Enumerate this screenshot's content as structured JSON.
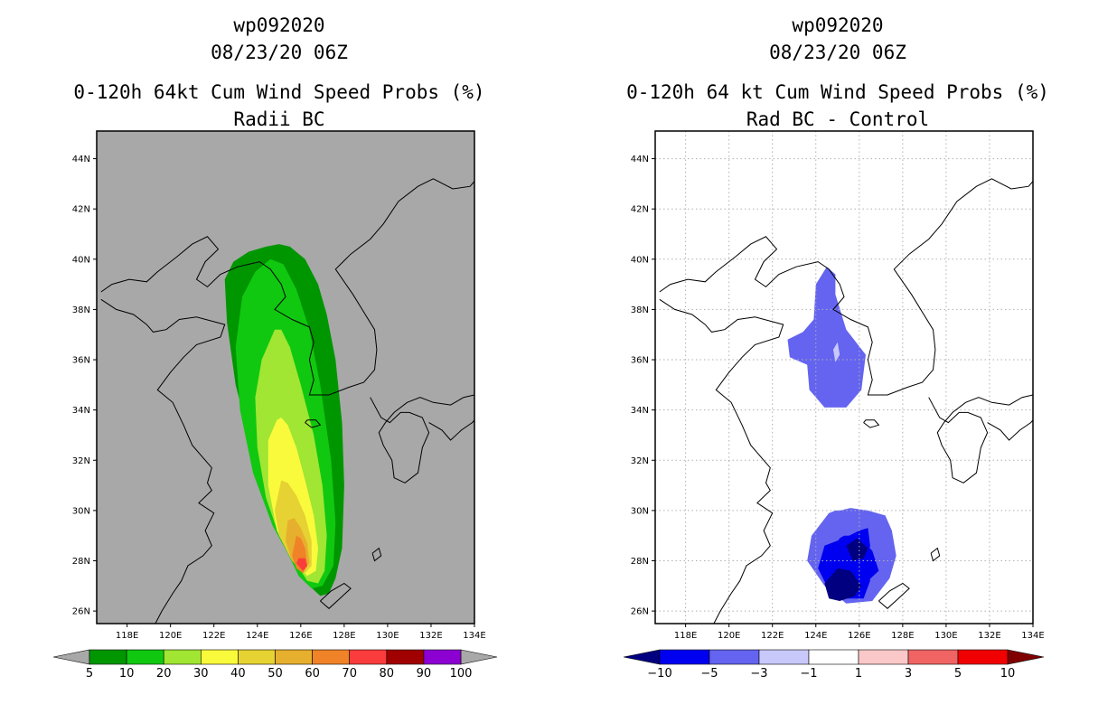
{
  "chart_data": [
    {
      "type": "heatmap",
      "title_lines": [
        "wp092020",
        "08/23/20 06Z",
        "0-120h 64kt Cum Wind Speed Probs (%)",
        "Radii BC"
      ],
      "x_ticks": [
        "118E",
        "120E",
        "122E",
        "124E",
        "126E",
        "128E",
        "130E",
        "132E",
        "134E"
      ],
      "y_ticks": [
        "26N",
        "28N",
        "30N",
        "32N",
        "34N",
        "36N",
        "38N",
        "40N",
        "42N",
        "44N"
      ],
      "xlim": [
        116.6,
        134
      ],
      "ylim": [
        25.5,
        45.1
      ],
      "grid": false,
      "background_color": "#a8a8a8",
      "colorbar": {
        "labels": [
          "5",
          "10",
          "20",
          "30",
          "40",
          "50",
          "60",
          "70",
          "80",
          "90",
          "100"
        ],
        "colors": [
          "#009600",
          "#10c810",
          "#a0e632",
          "#fafa3c",
          "#e6d232",
          "#e6af2d",
          "#f08228",
          "#fa3c3c",
          "#a00000",
          "#8c00d2"
        ],
        "under_color": "#a8a8a8",
        "over_color": "#a8a8a8"
      },
      "contours": [
        {
          "level": 5,
          "lon": [
            125.0,
            124.4,
            123.6,
            122.9,
            122.5,
            122.6,
            123.0,
            123.9,
            124.9,
            125.7,
            126.4,
            126.9,
            127.3,
            127.6,
            127.9,
            128.0,
            127.9,
            127.6,
            127.2,
            126.8,
            126.2,
            125.5
          ],
          "lat": [
            40.6,
            40.5,
            40.3,
            39.9,
            39.2,
            37.5,
            35.0,
            32.0,
            29.5,
            28.0,
            27.0,
            26.6,
            26.7,
            27.3,
            28.5,
            31.0,
            33.5,
            36.0,
            37.8,
            39.0,
            40.0,
            40.5
          ]
        },
        {
          "level": 10,
          "lon": [
            124.6,
            123.9,
            123.3,
            123.0,
            123.2,
            123.8,
            124.7,
            125.4,
            125.9,
            126.5,
            127.0,
            127.5,
            127.6,
            127.4,
            126.9,
            126.4,
            125.8,
            125.2
          ],
          "lat": [
            40.0,
            39.5,
            38.5,
            36.5,
            34.0,
            31.5,
            29.4,
            28.3,
            27.4,
            26.9,
            27.0,
            27.8,
            29.5,
            32.0,
            35.0,
            37.2,
            38.8,
            39.8
          ]
        },
        {
          "level": 20,
          "lon": [
            124.8,
            124.2,
            123.9,
            124.0,
            124.4,
            125.0,
            125.7,
            126.3,
            126.8,
            127.1,
            127.2,
            127.0,
            126.6,
            126.0,
            125.5,
            125.1
          ],
          "lat": [
            37.2,
            36.0,
            34.5,
            32.5,
            30.5,
            29.0,
            28.0,
            27.2,
            27.1,
            27.6,
            29.0,
            31.0,
            33.0,
            35.0,
            36.5,
            37.2
          ]
        },
        {
          "level": 30,
          "lon": [
            124.9,
            124.5,
            124.5,
            124.9,
            125.6,
            126.3,
            126.7,
            126.8,
            126.6,
            126.2,
            125.8,
            125.4,
            125.1
          ],
          "lat": [
            33.6,
            32.8,
            31.0,
            29.2,
            28.0,
            27.4,
            27.6,
            28.5,
            29.8,
            31.2,
            32.5,
            33.4,
            33.7
          ]
        },
        {
          "level": 40,
          "lon": [
            125.1,
            124.8,
            125.0,
            125.6,
            126.2,
            126.5,
            126.5,
            126.2,
            125.8,
            125.4
          ],
          "lat": [
            31.2,
            30.0,
            29.0,
            28.0,
            27.5,
            27.8,
            28.8,
            29.8,
            30.6,
            31.1
          ]
        },
        {
          "level": 50,
          "lon": [
            125.4,
            125.3,
            125.6,
            126.1,
            126.4,
            126.3,
            126.0,
            125.7
          ],
          "lat": [
            29.6,
            28.8,
            28.0,
            27.6,
            27.9,
            28.7,
            29.3,
            29.7
          ]
        },
        {
          "level": 60,
          "lon": [
            125.8,
            125.6,
            125.8,
            126.1,
            126.3,
            126.2,
            126.0
          ],
          "lat": [
            29.0,
            28.2,
            27.7,
            27.5,
            27.8,
            28.5,
            28.9
          ]
        },
        {
          "level": 70,
          "lon": [
            125.8,
            126.1,
            126.3,
            126.2,
            125.9
          ],
          "lat": [
            27.9,
            27.6,
            27.8,
            28.1,
            28.1
          ]
        }
      ]
    },
    {
      "type": "heatmap",
      "title_lines": [
        "wp092020",
        "08/23/20 06Z",
        "0-120h 64 kt Cum Wind Speed Probs (%)",
        "Rad BC - Control"
      ],
      "x_ticks": [
        "118E",
        "120E",
        "122E",
        "124E",
        "126E",
        "128E",
        "130E",
        "132E",
        "134E"
      ],
      "y_ticks": [
        "26N",
        "28N",
        "30N",
        "32N",
        "34N",
        "36N",
        "38N",
        "40N",
        "42N",
        "44N"
      ],
      "xlim": [
        116.6,
        134
      ],
      "ylim": [
        25.5,
        45.1
      ],
      "grid": true,
      "background_color": "#ffffff",
      "colorbar": {
        "labels": [
          "-10",
          "-5",
          "-3",
          "-1",
          "1",
          "3",
          "5",
          "10"
        ],
        "colors": [
          "#0000f0",
          "#6464f0",
          "#c8c8fa",
          "#ffffff",
          "#fac8c8",
          "#f06464",
          "#f00000"
        ],
        "under_color": "#000080",
        "over_color": "#800000"
      },
      "contours": [
        {
          "level": -3,
          "lon": [
            124.5,
            124.0,
            123.9,
            123.4,
            122.7,
            122.8,
            123.6,
            123.7,
            124.4,
            125.4,
            126.1,
            126.3,
            125.4,
            124.9,
            124.9
          ],
          "lat": [
            39.7,
            39.0,
            37.6,
            37.1,
            36.8,
            36.1,
            35.8,
            34.8,
            34.1,
            34.1,
            34.8,
            36.2,
            37.2,
            38.6,
            39.4
          ]
        },
        {
          "level": -3,
          "lon": [
            124.6,
            123.8,
            123.6,
            124.4,
            125.4,
            126.6,
            127.4,
            127.7,
            127.5,
            127.2,
            126.4,
            125.6,
            125.1,
            124.9
          ],
          "lat": [
            29.9,
            29.0,
            28.0,
            27.0,
            26.3,
            26.4,
            27.3,
            28.2,
            29.2,
            29.8,
            30.0,
            30.1,
            30.0,
            30.0
          ]
        },
        {
          "level": -5,
          "lon": [
            124.4,
            124.1,
            124.5,
            125.4,
            126.2,
            126.5,
            126.4,
            126.5,
            126.4,
            126.0,
            125.3
          ],
          "lat": [
            28.6,
            27.7,
            27.0,
            26.5,
            26.5,
            27.2,
            28.0,
            28.6,
            29.3,
            29.2,
            28.9
          ]
        },
        {
          "level": -5,
          "lon": [
            125.1,
            124.6,
            125.6,
            126.4,
            126.9,
            126.6,
            125.9,
            125.3
          ],
          "lat": [
            28.9,
            28.2,
            27.4,
            27.2,
            27.6,
            28.4,
            29.0,
            29.0
          ]
        },
        {
          "level": -10,
          "lon": [
            124.4,
            125.0,
            125.6,
            126.1,
            125.8,
            125.1,
            124.6
          ],
          "lat": [
            27.1,
            27.7,
            27.6,
            27.0,
            26.6,
            26.4,
            26.5
          ]
        },
        {
          "level": -10,
          "lon": [
            125.4,
            125.9,
            126.4,
            126.2,
            125.7
          ],
          "lat": [
            28.6,
            28.9,
            28.5,
            28.1,
            28.0
          ]
        },
        {
          "level": -1,
          "lon": [
            124.8,
            125.0,
            125.1,
            124.9
          ],
          "lat": [
            36.4,
            36.7,
            36.2,
            35.9
          ]
        }
      ]
    }
  ]
}
